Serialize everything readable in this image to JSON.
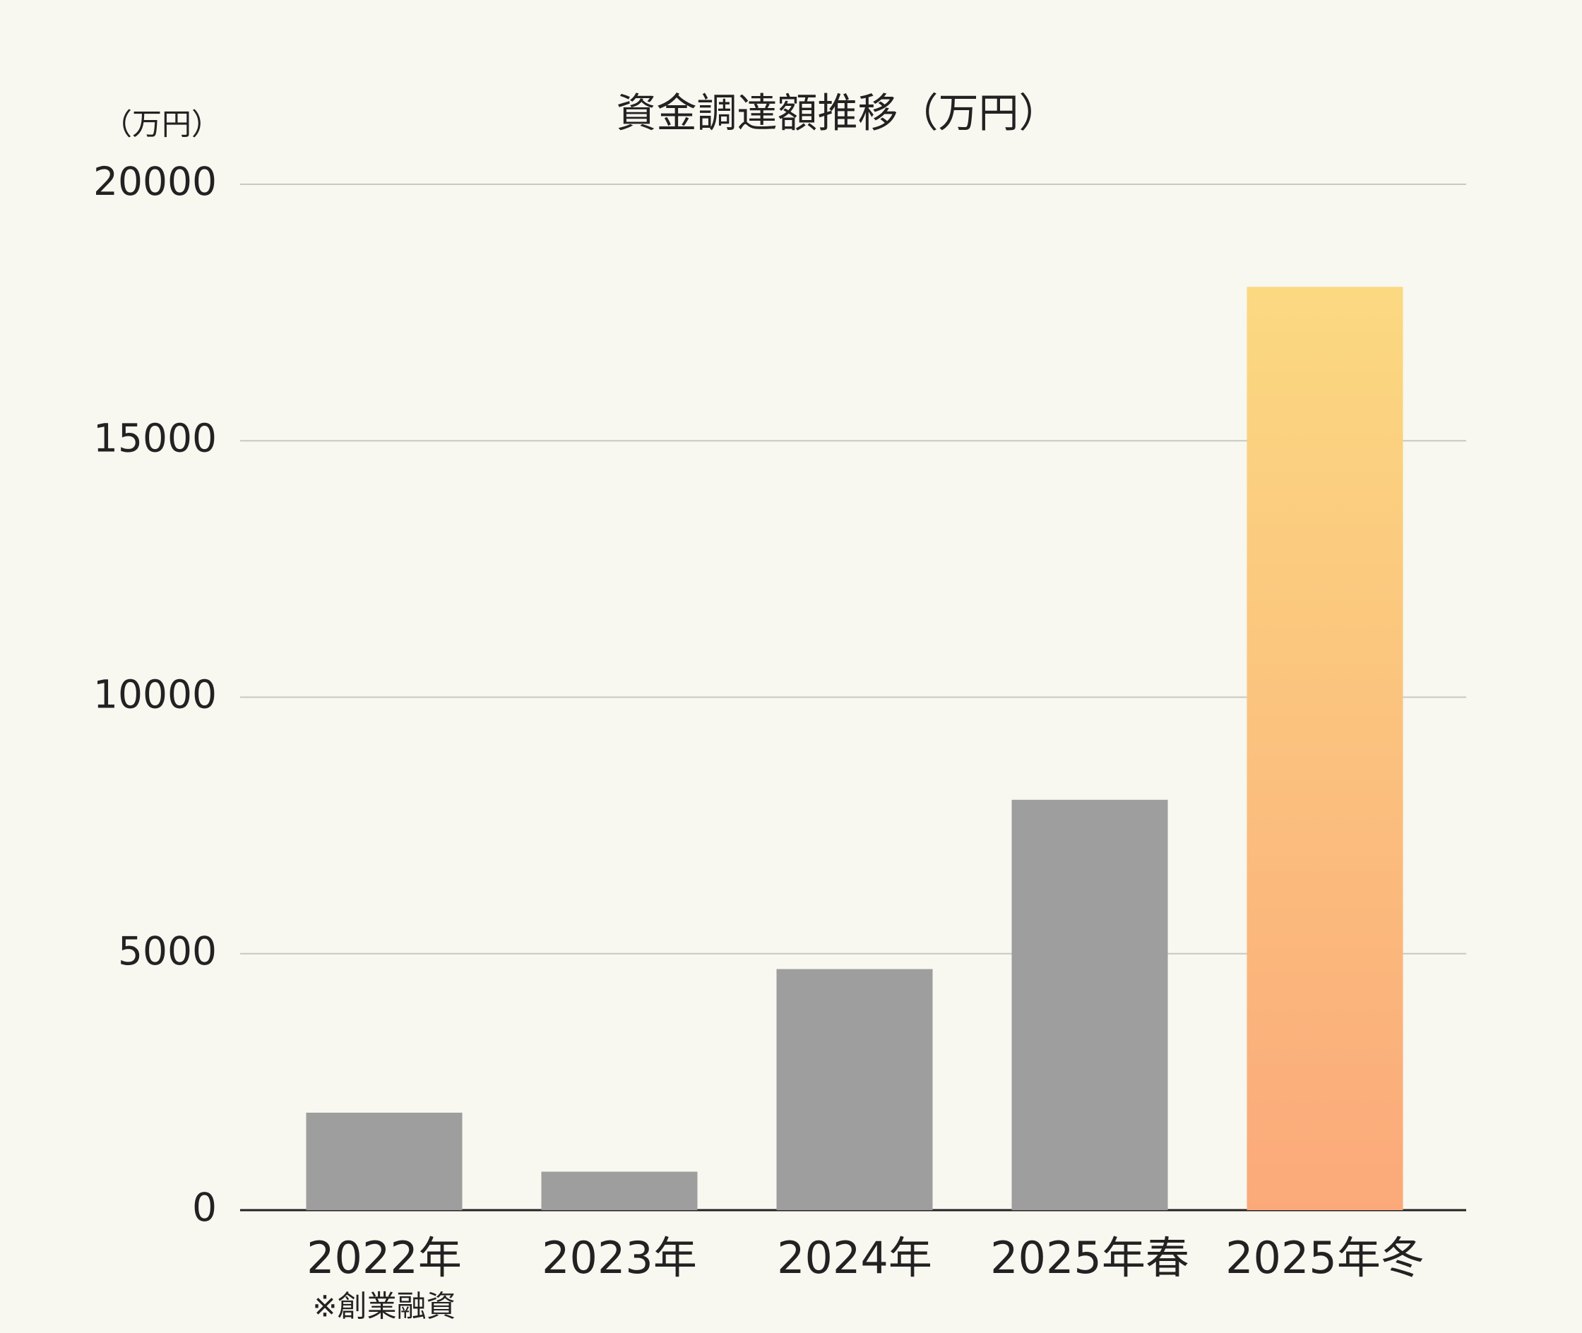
{
  "chart_data": {
    "type": "bar",
    "title": "資金調達額推移（万円）",
    "y_unit_label": "（万円）",
    "categories": [
      "2022年",
      "2023年",
      "2024年",
      "2025年春",
      "2025年冬"
    ],
    "annotations": [
      "※創業融資"
    ],
    "values": [
      1900,
      750,
      4700,
      8000,
      18000
    ],
    "colors": [
      "#9e9e9e",
      "#9e9e9e",
      "#9e9e9e",
      "#9e9e9e",
      [
        "#fbd981",
        "#fba97a"
      ]
    ],
    "ylim": [
      0,
      20000
    ],
    "yticks": [
      0,
      5000,
      10000,
      15000,
      20000
    ],
    "grid": true
  }
}
